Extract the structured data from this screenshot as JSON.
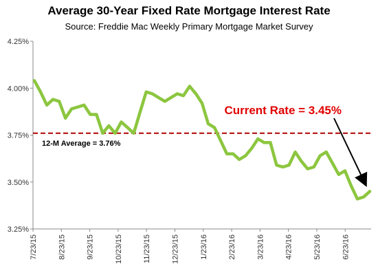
{
  "chart_data": {
    "type": "line",
    "title": "Average 30-Year Fixed Rate Mortgage Interest Rate",
    "subtitle": "Source: Freddie Mac Weekly Primary Mortgage Market Survey",
    "xlabel": "",
    "ylabel": "",
    "ylim": [
      3.25,
      4.25
    ],
    "y_ticks": [
      "3.25%",
      "3.50%",
      "3.75%",
      "4.00%",
      "4.25%"
    ],
    "y_tick_values": [
      3.25,
      3.5,
      3.75,
      4.0,
      4.25
    ],
    "x_ticks": [
      "7/23/15",
      "8/23/15",
      "9/23/15",
      "10/23/15",
      "11/23/15",
      "12/23/15",
      "1/23/16",
      "2/23/16",
      "3/23/16",
      "4/23/16",
      "5/23/16",
      "6/23/16"
    ],
    "grid": false,
    "series": [
      {
        "values": [
          4.04,
          3.98,
          3.91,
          3.94,
          3.93,
          3.84,
          3.89,
          3.9,
          3.91,
          3.86,
          3.86,
          3.76,
          3.8,
          3.76,
          3.82,
          3.79,
          3.76,
          3.87,
          3.98,
          3.97,
          3.95,
          3.93,
          3.95,
          3.97,
          3.96,
          4.01,
          3.97,
          3.92,
          3.81,
          3.79,
          3.72,
          3.65,
          3.65,
          3.62,
          3.64,
          3.68,
          3.73,
          3.71,
          3.71,
          3.59,
          3.58,
          3.59,
          3.66,
          3.61,
          3.57,
          3.58,
          3.64,
          3.66,
          3.6,
          3.54,
          3.56,
          3.48,
          3.41,
          3.42,
          3.45
        ],
        "color": "#8cc63f"
      }
    ],
    "reference_line": {
      "value": 3.76,
      "label": "12-M Average = 3.76%",
      "color": "#b00000",
      "style": "dashed"
    },
    "annotation": {
      "text": "Current Rate = 3.45%",
      "color": "#e00000",
      "arrow": true
    }
  }
}
